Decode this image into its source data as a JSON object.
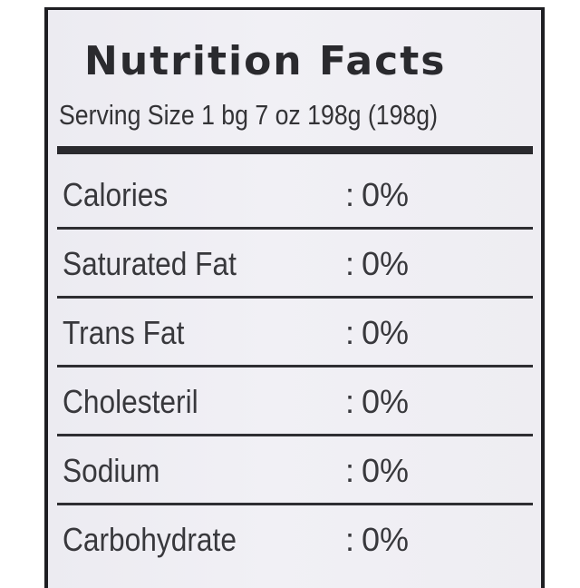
{
  "label": {
    "title": "Nutrition Facts",
    "serving_size": "Serving Size 1 bg 7 oz 198g (198g)",
    "separator": ":",
    "rows": [
      {
        "name": "Calories",
        "value": "0%"
      },
      {
        "name": "Saturated Fat",
        "value": "0%"
      },
      {
        "name": "Trans Fat",
        "value": "0%"
      },
      {
        "name": "Cholesteril",
        "value": "0%"
      },
      {
        "name": "Sodium",
        "value": "0%"
      },
      {
        "name": "Carbohydrate",
        "value": "0%"
      }
    ]
  },
  "colors": {
    "text": "#38383c",
    "rule": "#2a2a2e",
    "background": "#efeef3"
  }
}
